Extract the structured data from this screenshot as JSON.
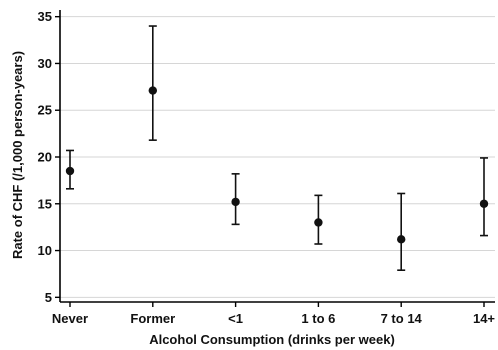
{
  "chart_data": {
    "type": "scatter",
    "title": "",
    "xlabel": "Alcohol Consumption (drinks per week)",
    "ylabel": "Rate of CHF (/1,000 person-years)",
    "ylim": [
      4.5,
      35.5
    ],
    "yticks": [
      5,
      10,
      15,
      20,
      25,
      30,
      35
    ],
    "grid": true,
    "categories": [
      "Never",
      "Former",
      "<1",
      "1 to 6",
      "7 to 14",
      "14+"
    ],
    "series": [
      {
        "values": [
          18.5,
          27.1,
          15.2,
          13.0,
          11.2,
          15.0
        ],
        "lower": [
          16.6,
          21.8,
          12.8,
          10.7,
          7.9,
          11.6
        ],
        "upper": [
          20.7,
          34.0,
          18.2,
          15.9,
          16.1,
          19.9
        ]
      }
    ],
    "legend": "none"
  }
}
